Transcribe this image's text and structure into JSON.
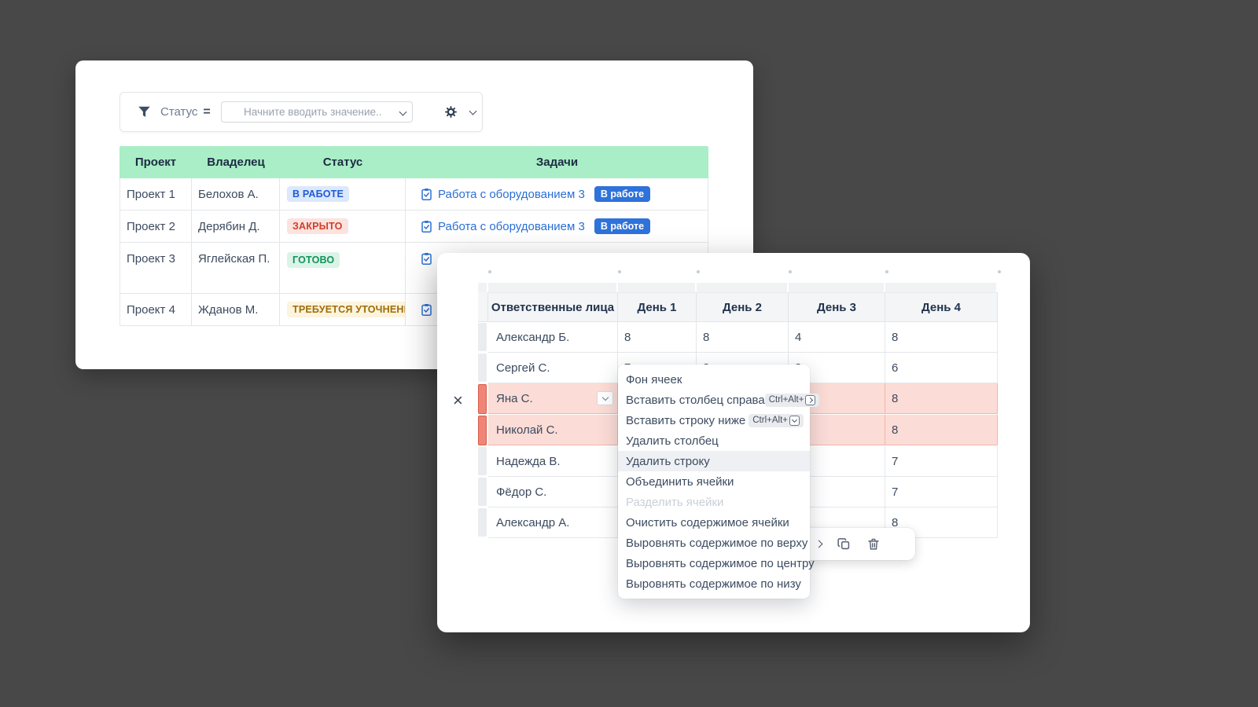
{
  "back_window": {
    "filter_bar": {
      "field": "Статус",
      "operator": "=",
      "placeholder": "Начните вводить значение.."
    },
    "table": {
      "headers": [
        "Проект",
        "Владелец",
        "Статус",
        "Задачи"
      ],
      "rows": [
        {
          "project": "Проект 1",
          "owner": "Белохов А.",
          "status": "В РАБОТЕ",
          "status_type": "inwork",
          "task": "Работа с оборудованием 3",
          "task_badge": "В работе",
          "task_visible": "full"
        },
        {
          "project": "Проект 2",
          "owner": "Дерябин Д.",
          "status": "ЗАКРЫТО",
          "status_type": "closed",
          "task": "Работа с оборудованием 3",
          "task_badge": "В работе",
          "task_visible": "full"
        },
        {
          "project": "Проект 3",
          "owner": "Яглейская П.",
          "status": "ГОТОВО",
          "status_type": "done",
          "task": "",
          "task_badge": "",
          "task_visible": "icon"
        },
        {
          "project": "Проект 4",
          "owner": "Жданов М.",
          "status": "ТРЕБУЕТСЯ УТОЧНЕНИЕ",
          "status_type": "clarify",
          "task": "",
          "task_badge": "",
          "task_visible": "icon"
        }
      ]
    }
  },
  "front_window": {
    "close_label": "×",
    "table": {
      "headers": [
        "Ответственные лица",
        "День 1",
        "День 2",
        "День 3",
        "День 4"
      ],
      "rows": [
        {
          "name": "Александр Б.",
          "values": [
            "8",
            "8",
            "4",
            "8"
          ],
          "selected": false,
          "has_dropdown": false
        },
        {
          "name": "Сергей С.",
          "values": [
            "7",
            "8",
            "8",
            "6"
          ],
          "selected": false,
          "has_dropdown": false
        },
        {
          "name": "Яна С.",
          "values": [
            "",
            "",
            "",
            "8"
          ],
          "selected": true,
          "has_dropdown": true
        },
        {
          "name": "Николай С.",
          "values": [
            "",
            "",
            "",
            "8"
          ],
          "selected": true,
          "has_dropdown": false
        },
        {
          "name": "Надежда В.",
          "values": [
            "",
            "",
            "",
            "7"
          ],
          "selected": false,
          "has_dropdown": false
        },
        {
          "name": "Фёдор С.",
          "values": [
            "",
            "",
            "",
            "7"
          ],
          "selected": false,
          "has_dropdown": false
        },
        {
          "name": "Александр А.",
          "values": [
            "",
            "",
            "",
            "8"
          ],
          "selected": false,
          "has_dropdown": false
        }
      ]
    },
    "context_menu": {
      "items": [
        {
          "label": "Фон ячеек"
        },
        {
          "label": "Вставить столбец справа",
          "shortcut": "Ctrl+Alt+",
          "shortcut_arrow": "right"
        },
        {
          "label": "Вставить строку ниже",
          "shortcut": "Ctrl+Alt+",
          "shortcut_arrow": "down"
        },
        {
          "label": "Удалить столбец"
        },
        {
          "label": "Удалить строку",
          "state": "highlighted"
        },
        {
          "label": "Объединить ячейки"
        },
        {
          "label": "Разделить ячейки",
          "state": "disabled"
        },
        {
          "label": "Очистить содержимое ячейки"
        },
        {
          "label": "Выровнять содержимое по верху"
        },
        {
          "label": "Выровнять содержимое по центру"
        },
        {
          "label": "Выровнять содержимое по низу"
        }
      ]
    }
  },
  "icons": {
    "filter": "funnel",
    "settings": "gear",
    "task": "clipboard-check",
    "close": "x",
    "toolbar": [
      "chevron-right",
      "copy",
      "trash"
    ],
    "dropdown": "chevron-down"
  },
  "colors": {
    "background": "#484848",
    "table_header_green": "#a9eec6",
    "status_inwork_fg": "#1d5bd6",
    "status_inwork_bg": "#dce8fb",
    "status_closed_fg": "#d43d27",
    "status_closed_bg": "#fbe3e0",
    "status_done_fg": "#12925c",
    "status_done_bg": "#dbf4e7",
    "status_clarify_fg": "#a06c08",
    "status_clarify_bg": "#fcf4dc",
    "task_badge_blue": "#2e72da",
    "link_blue": "#2b6fd4",
    "selected_row_bg": "#fcdcd6",
    "selected_handle_red": "#f08577",
    "menu_highlight": "#eef0f3"
  }
}
